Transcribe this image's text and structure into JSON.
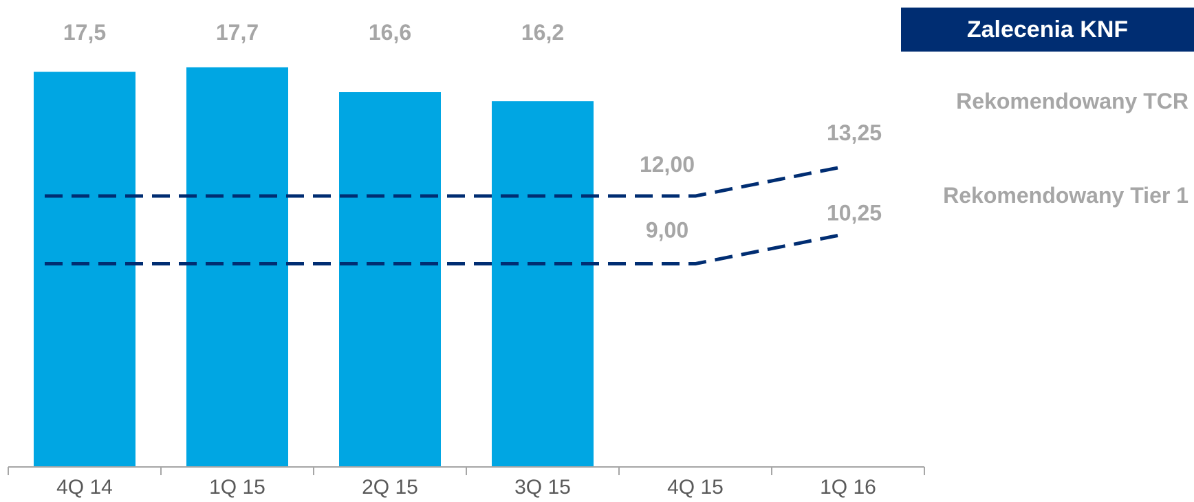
{
  "legend_box": {
    "label": "Zalecenia KNF",
    "bg": "#002d72"
  },
  "colors": {
    "bar": "#00a6e3",
    "dashed": "#002d72",
    "value_label": "#a6a6a6",
    "tick_label": "#595959",
    "axis": "#a6a6a6"
  },
  "chart_data": {
    "type": "bar",
    "categories": [
      "4Q 14",
      "1Q 15",
      "2Q 15",
      "3Q 15",
      "4Q 15",
      "1Q 16"
    ],
    "values": [
      17.5,
      17.7,
      16.6,
      16.2,
      null,
      null
    ],
    "value_labels": [
      "17,5",
      "17,7",
      "16,6",
      "16,2",
      "",
      ""
    ],
    "grid": false,
    "ylim": [
      0,
      20.5
    ],
    "lines": [
      {
        "name": "Rekomendowany TCR",
        "style": "dashed",
        "points": [
          {
            "category": "4Q 14",
            "value": 12.0
          },
          {
            "category": "4Q 15",
            "value": 12.0
          },
          {
            "category": "1Q 16",
            "value": 13.25
          }
        ],
        "labels": [
          {
            "category": "4Q 15",
            "text": "12,00"
          },
          {
            "category": "1Q 16",
            "text": "13,25"
          }
        ]
      },
      {
        "name": "Rekomendowany Tier 1",
        "style": "dashed",
        "points": [
          {
            "category": "4Q 14",
            "value": 9.0
          },
          {
            "category": "4Q 15",
            "value": 9.0
          },
          {
            "category": "1Q 16",
            "value": 10.25
          }
        ],
        "labels": [
          {
            "category": "4Q 15",
            "text": "9,00"
          },
          {
            "category": "1Q 16",
            "text": "10,25"
          }
        ]
      }
    ]
  }
}
